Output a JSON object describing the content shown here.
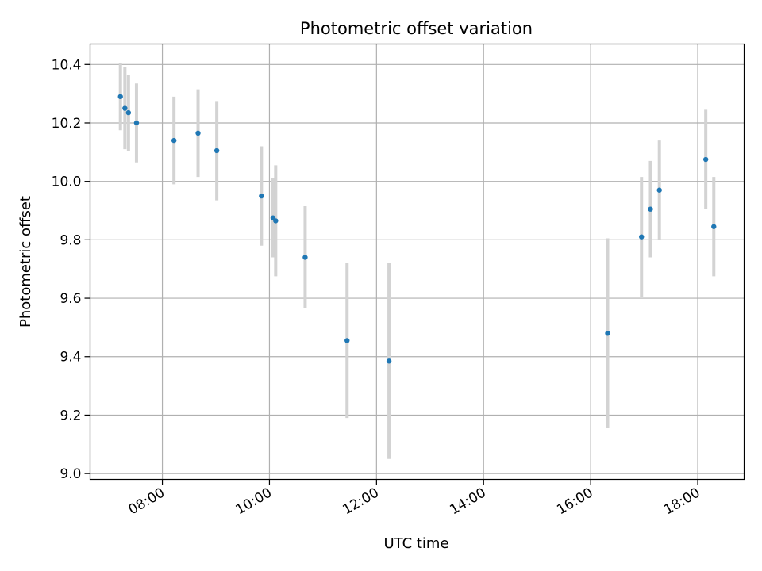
{
  "chart_data": {
    "type": "scatter",
    "title": "Photometric offset variation",
    "xlabel": "UTC time",
    "ylabel": "Photometric offset",
    "xlim": [
      "06:39",
      "18:52"
    ],
    "ylim": [
      8.98,
      10.47
    ],
    "grid": true,
    "x_ticks": [
      "08:00",
      "10:00",
      "12:00",
      "14:00",
      "16:00",
      "18:00"
    ],
    "y_ticks": [
      "9.0",
      "9.2",
      "9.4",
      "9.6",
      "9.8",
      "10.0",
      "10.2",
      "10.4"
    ],
    "marker_color": "#1f77b4",
    "errorbar_color": "#d3d3d3",
    "points": [
      {
        "t": "07:13",
        "y": 10.29,
        "err": 0.115
      },
      {
        "t": "07:18",
        "y": 10.25,
        "err": 0.14
      },
      {
        "t": "07:22",
        "y": 10.235,
        "err": 0.13
      },
      {
        "t": "07:31",
        "y": 10.2,
        "err": 0.135
      },
      {
        "t": "08:13",
        "y": 10.14,
        "err": 0.15
      },
      {
        "t": "08:40",
        "y": 10.165,
        "err": 0.15
      },
      {
        "t": "09:01",
        "y": 10.105,
        "err": 0.17
      },
      {
        "t": "09:51",
        "y": 9.95,
        "err": 0.17
      },
      {
        "t": "10:04",
        "y": 9.875,
        "err": 0.135
      },
      {
        "t": "10:07",
        "y": 9.865,
        "err": 0.19
      },
      {
        "t": "10:40",
        "y": 9.74,
        "err": 0.175
      },
      {
        "t": "11:27",
        "y": 9.455,
        "err": 0.265
      },
      {
        "t": "12:14",
        "y": 9.385,
        "err": 0.335
      },
      {
        "t": "16:19",
        "y": 9.48,
        "err": 0.325
      },
      {
        "t": "16:57",
        "y": 9.81,
        "err": 0.205
      },
      {
        "t": "17:07",
        "y": 9.905,
        "err": 0.165
      },
      {
        "t": "17:17",
        "y": 9.97,
        "err": 0.17
      },
      {
        "t": "18:09",
        "y": 10.075,
        "err": 0.17
      },
      {
        "t": "18:18",
        "y": 9.845,
        "err": 0.17
      }
    ]
  }
}
